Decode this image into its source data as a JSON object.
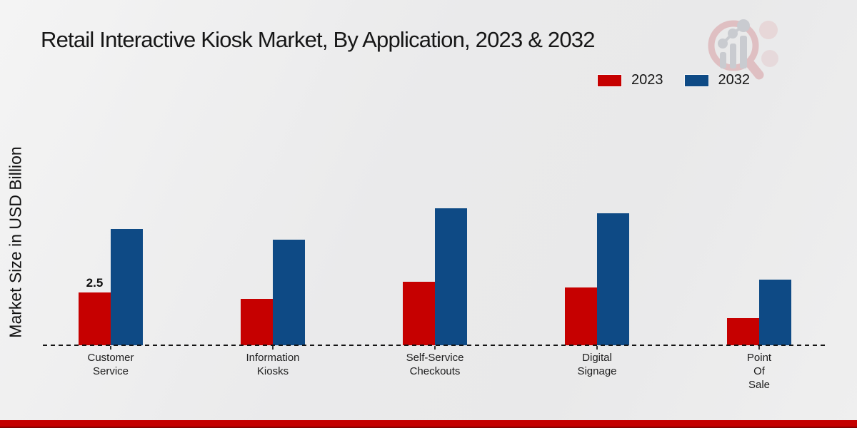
{
  "title": "Retail Interactive Kiosk Market, By Application, 2023 & 2032",
  "colors": {
    "bar_2023": "#c60000",
    "bar_2032": "#0e4a85",
    "footer_bar": "#c40000",
    "baseline": "#141414",
    "logo_ring": "#debbbe",
    "logo_bars": "#c6c8ce"
  },
  "legend": {
    "position": "upper-right"
  },
  "chart_data": {
    "type": "bar",
    "title": "Retail Interactive Kiosk Market, By Application, 2023 & 2032",
    "xlabel": "",
    "ylabel": "Market Size in USD Billion",
    "ylim": [
      0,
      7.5
    ],
    "grid": false,
    "legend_position": "upper-right",
    "baseline_style": "dashed",
    "categories": [
      "Customer\nService",
      "Information\nKiosks",
      "Self-Service\nCheckouts",
      "Digital\nSignage",
      "Point\nOf\nSale"
    ],
    "series": [
      {
        "name": "2023",
        "color": "#c60000",
        "values": [
          2.5,
          2.2,
          3.0,
          2.75,
          1.3
        ]
      },
      {
        "name": "2032",
        "color": "#0e4a85",
        "values": [
          5.5,
          5.0,
          6.5,
          6.25,
          3.1
        ]
      }
    ],
    "value_labels": [
      {
        "series_index": 0,
        "category_index": 0,
        "text": "2.5"
      }
    ]
  }
}
